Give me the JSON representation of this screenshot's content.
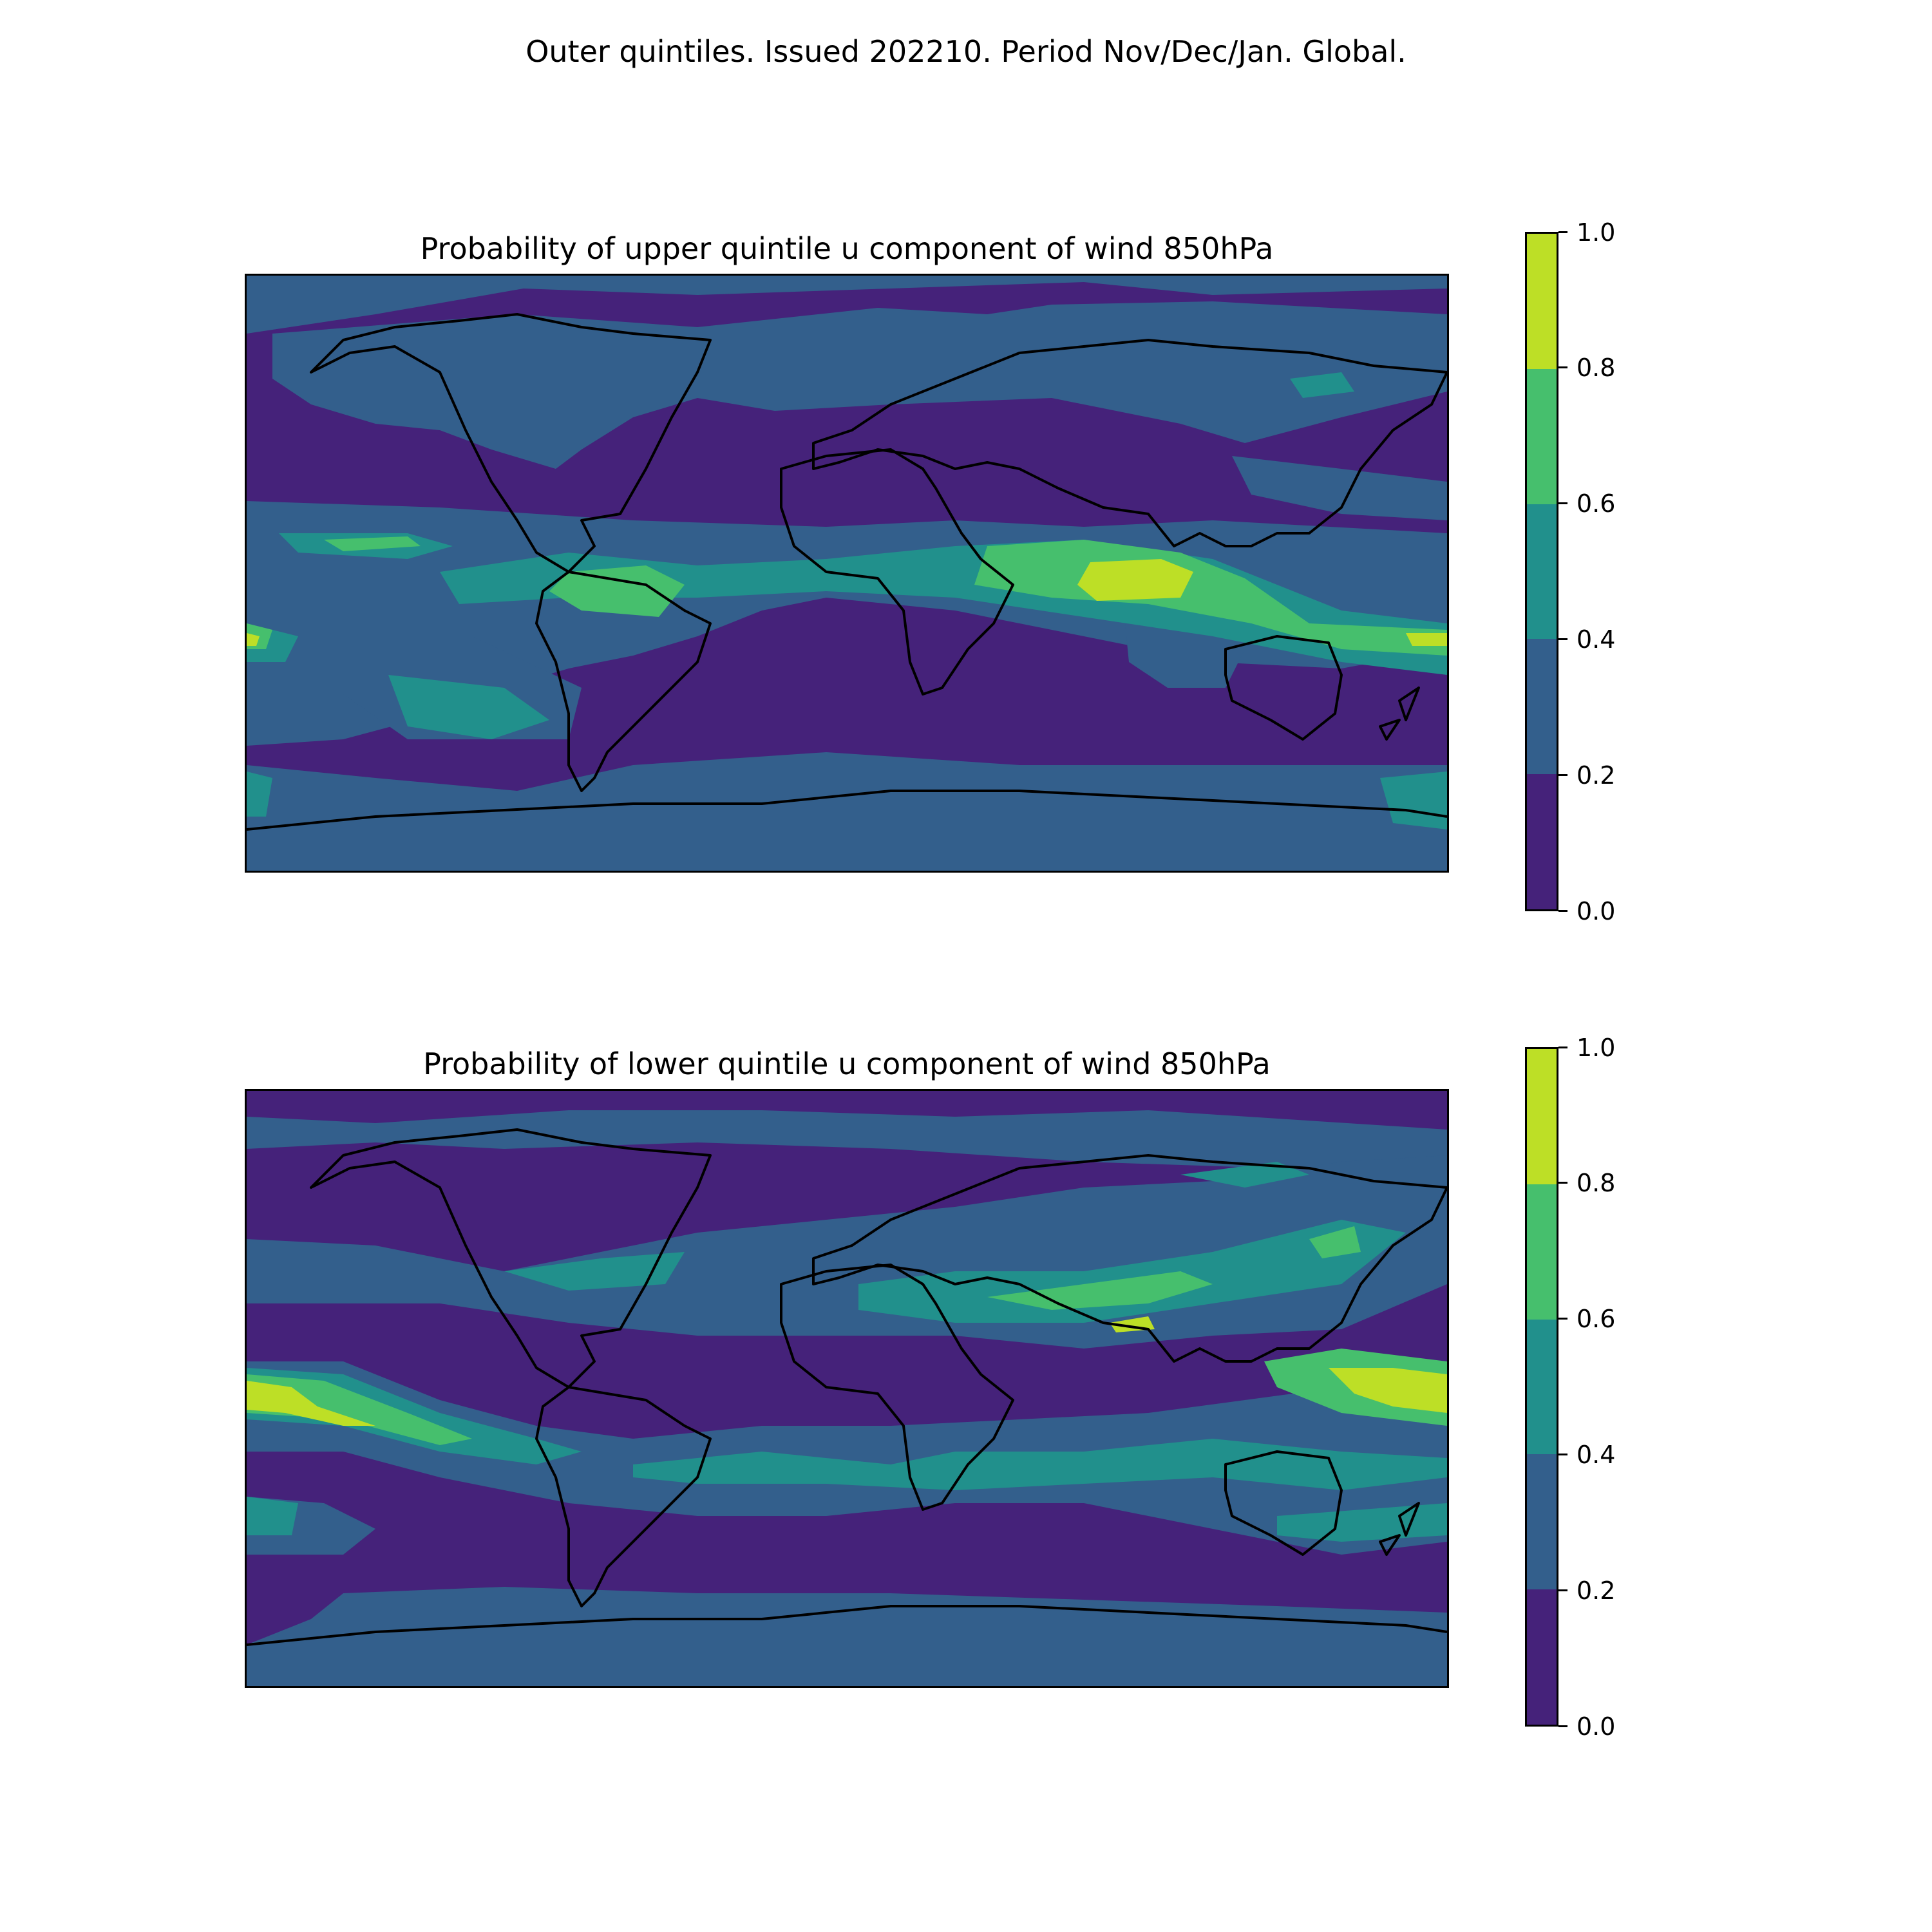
{
  "figure": {
    "suptitle": "Outer quintiles. Issued 202210. Period Nov/Dec/Jan. Global."
  },
  "legend": {
    "levels": [
      "0.0",
      "0.2",
      "0.4",
      "0.6",
      "0.8",
      "1.0"
    ],
    "colors": [
      "#45227a",
      "#335f8c",
      "#21908c",
      "#46bf6d",
      "#bddf26"
    ]
  },
  "panels": [
    {
      "title": "Probability of upper quintile u component of wind 850hPa",
      "map_icon": "world-coastline-map",
      "colorbar_ticks": [
        "0.0",
        "0.2",
        "0.4",
        "0.6",
        "0.8",
        "1.0"
      ]
    },
    {
      "title": "Probability of lower quintile u component of wind 850hPa",
      "map_icon": "world-coastline-map",
      "colorbar_ticks": [
        "0.0",
        "0.2",
        "0.4",
        "0.6",
        "0.8",
        "1.0"
      ]
    }
  ],
  "chart_data": [
    {
      "type": "heatmap",
      "title": "Probability of upper quintile u component of wind 850hPa",
      "projection": "equirectangular, global",
      "levels": [
        0.0,
        0.2,
        0.4,
        0.6,
        0.8,
        1.0
      ],
      "colorbar_range": [
        0.0,
        1.0
      ],
      "features": [
        {
          "region": "central Indian Ocean / Indonesia (~10N-5S, 80-130E)",
          "range": [
            0.8,
            1.0
          ]
        },
        {
          "region": "tropical Indian Ocean surroundings",
          "range": [
            0.6,
            0.8
          ]
        },
        {
          "region": "northern South America / equatorial Atlantic",
          "range": [
            0.6,
            0.8
          ]
        },
        {
          "region": "equatorial central Pacific (~10N)",
          "range": [
            0.6,
            0.8
          ]
        },
        {
          "region": "far western/eastern Pacific near equator",
          "range": [
            0.6,
            1.0
          ]
        },
        {
          "region": "southeast Pacific (~25-35S)",
          "range": [
            0.4,
            0.6
          ]
        },
        {
          "region": "subtropical & mid-latitude oceans",
          "range": [
            0.0,
            0.2
          ]
        },
        {
          "region": "North America, Eurasia, Antarctic coast",
          "range": [
            0.2,
            0.4
          ]
        }
      ]
    },
    {
      "type": "heatmap",
      "title": "Probability of lower quintile u component of wind 850hPa",
      "projection": "equirectangular, global",
      "levels": [
        0.0,
        0.2,
        0.4,
        0.6,
        0.8,
        1.0
      ],
      "colorbar_range": [
        0.0,
        1.0
      ],
      "features": [
        {
          "region": "equatorial western Pacific (~5N-5S, 150E-180)",
          "range": [
            0.8,
            1.0
          ]
        },
        {
          "region": "equatorial eastern Pacific (~180-160W)",
          "range": [
            0.8,
            1.0
          ]
        },
        {
          "region": "southern Asia / Tibetan plateau band (~25-30N)",
          "range": [
            0.6,
            0.8
          ]
        },
        {
          "region": "South Pacific convergence band to South America",
          "range": [
            0.4,
            0.8
          ]
        },
        {
          "region": "southern Indian Ocean (~20-30S)",
          "range": [
            0.4,
            0.6
          ]
        },
        {
          "region": "Tasman Sea / east of Australia",
          "range": [
            0.4,
            0.6
          ]
        },
        {
          "region": "Arctic, equatorial Atlantic, Southern Ocean",
          "range": [
            0.0,
            0.2
          ]
        },
        {
          "region": "Antarctica",
          "range": [
            0.2,
            0.4
          ]
        }
      ]
    }
  ]
}
